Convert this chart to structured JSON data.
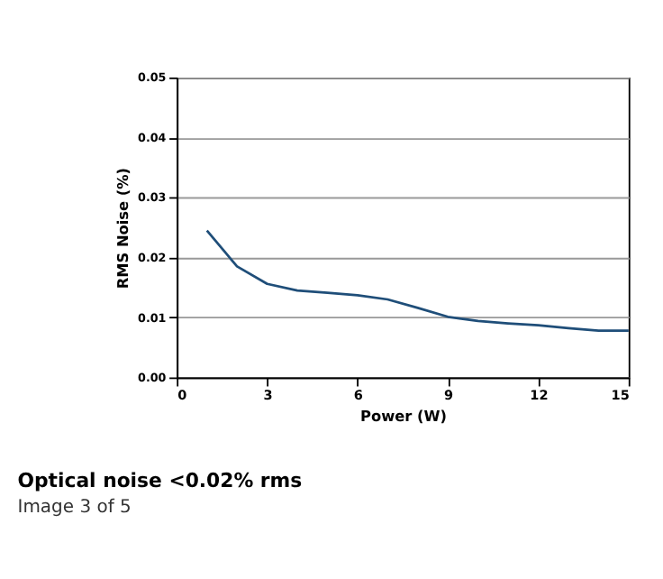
{
  "chart_data": {
    "type": "line",
    "title": "Optical noise <0.02% rms",
    "annotations": [
      "Image 3 of 5"
    ],
    "xlabel": "Power (W)",
    "ylabel": "RMS Noise (%)",
    "x": [
      1,
      2,
      3,
      4,
      5,
      6,
      7,
      8,
      9,
      10,
      11,
      12,
      13,
      14,
      15
    ],
    "series": [
      {
        "color": "#1f4e79",
        "values": [
          0.0245,
          0.0185,
          0.0156,
          0.0145,
          0.0141,
          0.0137,
          0.013,
          0.0116,
          0.0101,
          0.0094,
          0.009,
          0.0087,
          0.0082,
          0.0078,
          0.0078
        ]
      }
    ],
    "xlim": [
      0,
      15
    ],
    "xticks": [
      0,
      3,
      6,
      9,
      12,
      15
    ],
    "ylim": [
      0,
      0.05
    ],
    "yticks": [
      {
        "value": 0,
        "label": "0.00"
      },
      {
        "value": 0.01,
        "label": "0.01"
      },
      {
        "value": 0.02,
        "label": "0.02"
      },
      {
        "value": 0.03,
        "label": "0.03"
      },
      {
        "value": 0.04,
        "label": "0.04"
      },
      {
        "value": 0.05,
        "label": "0.05"
      }
    ],
    "grid": "y",
    "marker": "none",
    "line_style": "solid"
  }
}
